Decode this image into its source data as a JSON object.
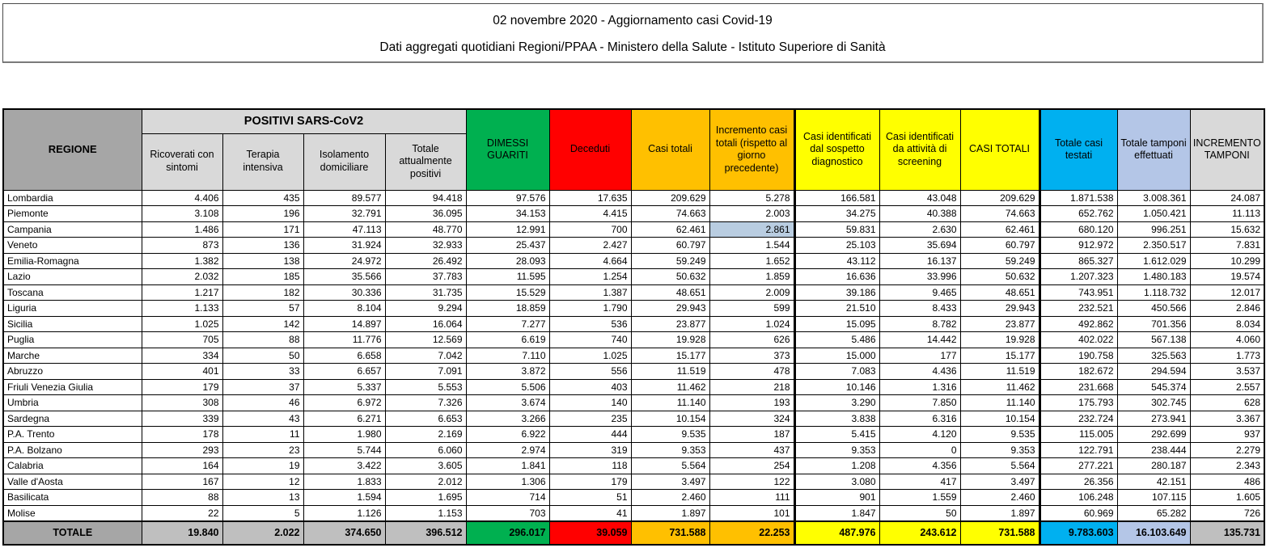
{
  "title": {
    "line1": "02 novembre 2020 - Aggiornamento casi Covid-19",
    "line2": "Dati aggregati quotidiani Regioni/PPAA - Ministero della Salute - Istituto Superiore di Sanità"
  },
  "colors": {
    "green": "#00b050",
    "red": "#ff0000",
    "orange": "#ffc000",
    "yellow": "#ffff00",
    "cyan": "#00b0f0",
    "pale_blue": "#b4c6e7",
    "gray_header": "#a6a6a6",
    "gray_total": "#bfbfbf",
    "gray_light": "#d9d9d9",
    "selection_highlight": "#b9cde1"
  },
  "table": {
    "headers": {
      "regione": "REGIONE",
      "positivi_group": "POSITIVI SARS-CoV2",
      "sub": [
        "Ricoverati con sintomi",
        "Terapia intensiva",
        "Isolamento domiciliare",
        "Totale attualmente positivi"
      ],
      "dimessi_guariti": "DIMESSI GUARITI",
      "deceduti": "Deceduti",
      "casi_totali": "Casi totali",
      "incremento_casi": "Incremento casi totali (rispetto al giorno precedente)",
      "casi_sospetto": "Casi identificati dal sospetto diagnostico",
      "casi_screening": "Casi identificati da attività di screening",
      "casi_totali_caps": "CASI TOTALI",
      "totale_testati": "Totale casi testati",
      "totale_tamponi": "Totale tamponi effettuati",
      "incremento_tamponi": "INCREMENTO TAMPONI"
    },
    "highlight": {
      "row_index": 2,
      "col_index": 7
    },
    "rows": [
      {
        "region": "Lombardia",
        "values": [
          "4.406",
          "435",
          "89.577",
          "94.418",
          "97.576",
          "17.635",
          "209.629",
          "5.278",
          "166.581",
          "43.048",
          "209.629",
          "1.871.538",
          "3.008.361",
          "24.087"
        ]
      },
      {
        "region": "Piemonte",
        "values": [
          "3.108",
          "196",
          "32.791",
          "36.095",
          "34.153",
          "4.415",
          "74.663",
          "2.003",
          "34.275",
          "40.388",
          "74.663",
          "652.762",
          "1.050.421",
          "11.113"
        ]
      },
      {
        "region": "Campania",
        "values": [
          "1.486",
          "171",
          "47.113",
          "48.770",
          "12.991",
          "700",
          "62.461",
          "2.861",
          "59.831",
          "2.630",
          "62.461",
          "680.120",
          "996.251",
          "15.632"
        ]
      },
      {
        "region": "Veneto",
        "values": [
          "873",
          "136",
          "31.924",
          "32.933",
          "25.437",
          "2.427",
          "60.797",
          "1.544",
          "25.103",
          "35.694",
          "60.797",
          "912.972",
          "2.350.517",
          "7.831"
        ]
      },
      {
        "region": "Emilia-Romagna",
        "values": [
          "1.382",
          "138",
          "24.972",
          "26.492",
          "28.093",
          "4.664",
          "59.249",
          "1.652",
          "43.112",
          "16.137",
          "59.249",
          "865.327",
          "1.612.029",
          "10.299"
        ]
      },
      {
        "region": "Lazio",
        "values": [
          "2.032",
          "185",
          "35.566",
          "37.783",
          "11.595",
          "1.254",
          "50.632",
          "1.859",
          "16.636",
          "33.996",
          "50.632",
          "1.207.323",
          "1.480.183",
          "19.574"
        ]
      },
      {
        "region": "Toscana",
        "values": [
          "1.217",
          "182",
          "30.336",
          "31.735",
          "15.529",
          "1.387",
          "48.651",
          "2.009",
          "39.186",
          "9.465",
          "48.651",
          "743.951",
          "1.118.732",
          "12.017"
        ]
      },
      {
        "region": "Liguria",
        "values": [
          "1.133",
          "57",
          "8.104",
          "9.294",
          "18.859",
          "1.790",
          "29.943",
          "599",
          "21.510",
          "8.433",
          "29.943",
          "232.521",
          "450.566",
          "2.846"
        ]
      },
      {
        "region": "Sicilia",
        "values": [
          "1.025",
          "142",
          "14.897",
          "16.064",
          "7.277",
          "536",
          "23.877",
          "1.024",
          "15.095",
          "8.782",
          "23.877",
          "492.862",
          "701.356",
          "8.034"
        ]
      },
      {
        "region": "Puglia",
        "values": [
          "705",
          "88",
          "11.776",
          "12.569",
          "6.619",
          "740",
          "19.928",
          "626",
          "5.486",
          "14.442",
          "19.928",
          "402.022",
          "567.138",
          "4.060"
        ]
      },
      {
        "region": "Marche",
        "values": [
          "334",
          "50",
          "6.658",
          "7.042",
          "7.110",
          "1.025",
          "15.177",
          "373",
          "15.000",
          "177",
          "15.177",
          "190.758",
          "325.563",
          "1.773"
        ]
      },
      {
        "region": "Abruzzo",
        "values": [
          "401",
          "33",
          "6.657",
          "7.091",
          "3.872",
          "556",
          "11.519",
          "478",
          "7.083",
          "4.436",
          "11.519",
          "182.672",
          "294.594",
          "3.537"
        ]
      },
      {
        "region": "Friuli Venezia Giulia",
        "values": [
          "179",
          "37",
          "5.337",
          "5.553",
          "5.506",
          "403",
          "11.462",
          "218",
          "10.146",
          "1.316",
          "11.462",
          "231.668",
          "545.374",
          "2.557"
        ]
      },
      {
        "region": "Umbria",
        "values": [
          "308",
          "46",
          "6.972",
          "7.326",
          "3.674",
          "140",
          "11.140",
          "193",
          "3.290",
          "7.850",
          "11.140",
          "175.793",
          "302.745",
          "628"
        ]
      },
      {
        "region": "Sardegna",
        "values": [
          "339",
          "43",
          "6.271",
          "6.653",
          "3.266",
          "235",
          "10.154",
          "324",
          "3.838",
          "6.316",
          "10.154",
          "232.724",
          "273.941",
          "3.367"
        ]
      },
      {
        "region": "P.A. Trento",
        "values": [
          "178",
          "11",
          "1.980",
          "2.169",
          "6.922",
          "444",
          "9.535",
          "187",
          "5.415",
          "4.120",
          "9.535",
          "115.005",
          "292.699",
          "937"
        ]
      },
      {
        "region": "P.A. Bolzano",
        "values": [
          "293",
          "23",
          "5.744",
          "6.060",
          "2.974",
          "319",
          "9.353",
          "437",
          "9.353",
          "0",
          "9.353",
          "122.791",
          "238.444",
          "2.279"
        ]
      },
      {
        "region": "Calabria",
        "values": [
          "164",
          "19",
          "3.422",
          "3.605",
          "1.841",
          "118",
          "5.564",
          "254",
          "1.208",
          "4.356",
          "5.564",
          "277.221",
          "280.187",
          "2.343"
        ]
      },
      {
        "region": "Valle d'Aosta",
        "values": [
          "167",
          "12",
          "1.833",
          "2.012",
          "1.306",
          "179",
          "3.497",
          "122",
          "3.080",
          "417",
          "3.497",
          "26.356",
          "42.151",
          "486"
        ]
      },
      {
        "region": "Basilicata",
        "values": [
          "88",
          "13",
          "1.594",
          "1.695",
          "714",
          "51",
          "2.460",
          "111",
          "901",
          "1.559",
          "2.460",
          "106.248",
          "107.115",
          "1.605"
        ]
      },
      {
        "region": "Molise",
        "values": [
          "22",
          "5",
          "1.126",
          "1.153",
          "703",
          "41",
          "1.897",
          "101",
          "1.847",
          "50",
          "1.897",
          "60.969",
          "65.282",
          "726"
        ]
      }
    ],
    "total": {
      "label": "TOTALE",
      "values": [
        "19.840",
        "2.022",
        "374.650",
        "396.512",
        "296.017",
        "39.059",
        "731.588",
        "22.253",
        "487.976",
        "243.612",
        "731.588",
        "9.783.603",
        "16.103.649",
        "135.731"
      ]
    }
  }
}
